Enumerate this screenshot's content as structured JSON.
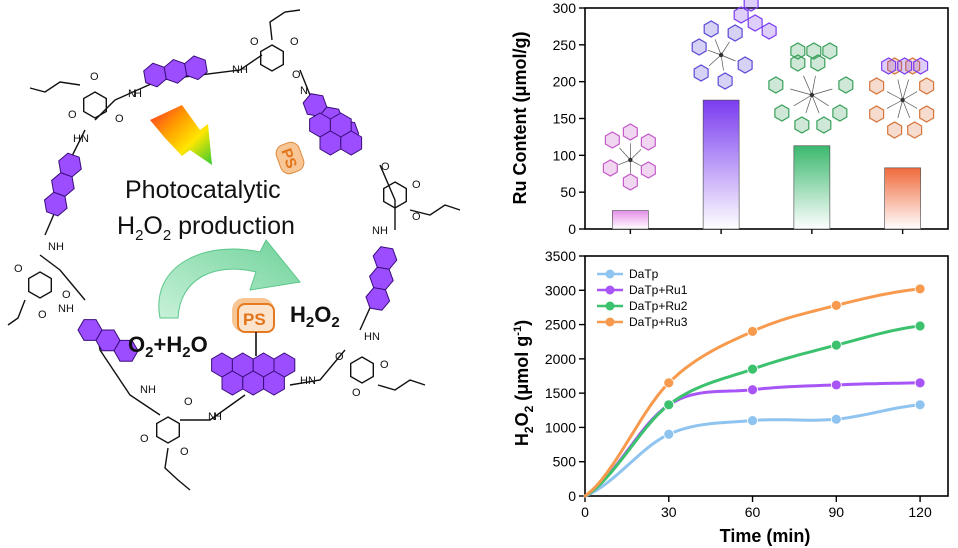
{
  "scheme": {
    "title_line1": "Photocatalytic",
    "title_line2_pre": "H",
    "title_line2_sub": "2",
    "title_line2_mid": "O",
    "title_line2_sub2": "2",
    "title_line2_post": " production",
    "reactant_o": "O",
    "reactant_sub": "2",
    "reactant_post": "+H",
    "reactant_sub2": "2",
    "reactant_end": "O",
    "product_h": "H",
    "product_sub": "2",
    "product_o": "O",
    "product_sub2": "2",
    "ps_label": "PS",
    "ps_label_small": "PS",
    "atom_o": "O",
    "atom_nh": "NH",
    "atom_hn": "HN",
    "atom_n": "N",
    "atom_h": "H",
    "colors": {
      "anthracene": "#9b4dff",
      "ps_badge": "#f3a860",
      "arrow": "#7fd9a8"
    }
  },
  "chart_data": [
    {
      "type": "bar",
      "categories": [
        "",
        "",
        "",
        ""
      ],
      "values": [
        25,
        175,
        113,
        83
      ],
      "colors": [
        "#e58ee8",
        "#7a3cf0",
        "#3bb86e",
        "#f06a3c"
      ],
      "xlabel": "",
      "ylabel": "Ru Content (μmol/g)",
      "ylim": [
        0,
        300
      ],
      "yticks": [
        0,
        50,
        100,
        150,
        200,
        250,
        300
      ],
      "grid": false
    },
    {
      "type": "line",
      "xlabel": "Time (min)",
      "ylabel_main": "H",
      "ylabel_sub": "2",
      "ylabel_mid": "O",
      "ylabel_sub2": "2",
      "ylabel_unit": " (μmol g",
      "ylabel_sup": "-1",
      "ylabel_end": ")",
      "xlim": [
        0,
        130
      ],
      "ylim": [
        0,
        3500
      ],
      "xticks": [
        0,
        30,
        60,
        90,
        120
      ],
      "yticks": [
        0,
        500,
        1000,
        1500,
        2000,
        2500,
        3000,
        3500
      ],
      "legend_position": "top-left",
      "grid": false,
      "series": [
        {
          "name": "DaTp",
          "color": "#8fc3f0",
          "x": [
            0,
            30,
            60,
            90,
            120
          ],
          "y": [
            0,
            900,
            1100,
            1120,
            1330
          ]
        },
        {
          "name": "DaTp+Ru1",
          "color": "#a855f7",
          "x": [
            0,
            30,
            60,
            90,
            120
          ],
          "y": [
            0,
            1330,
            1550,
            1620,
            1650
          ]
        },
        {
          "name": "DaTp+Ru2",
          "color": "#3cc26e",
          "x": [
            0,
            30,
            60,
            90,
            120
          ],
          "y": [
            0,
            1330,
            1850,
            2200,
            2480
          ]
        },
        {
          "name": "DaTp+Ru3",
          "color": "#f79a4d",
          "x": [
            0,
            30,
            60,
            90,
            120
          ],
          "y": [
            0,
            1650,
            2400,
            2780,
            3020
          ]
        }
      ]
    }
  ]
}
